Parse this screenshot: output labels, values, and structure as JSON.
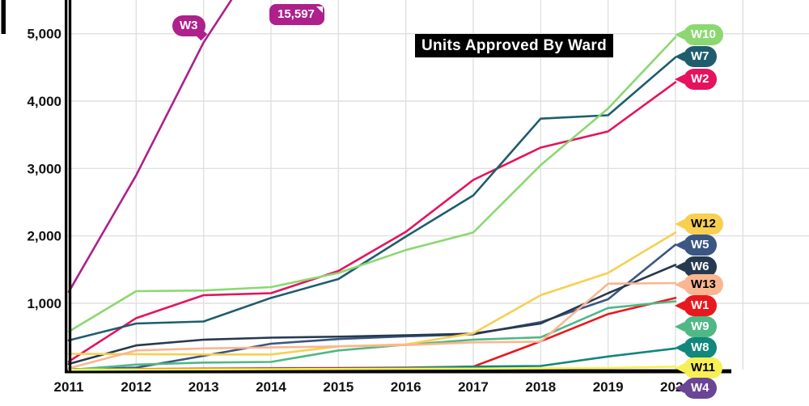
{
  "title": "Units Approved By Ward",
  "colors": {
    "background": "#ffffff",
    "grid": "#e0e0e0",
    "axis": "#000000",
    "title_bg": "#000000",
    "title_text": "#ffffff"
  },
  "chart_data": {
    "type": "line",
    "title": "Units Approved By Ward",
    "xlabel": "",
    "ylabel": "",
    "x": [
      2011,
      2012,
      2013,
      2014,
      2015,
      2016,
      2017,
      2018,
      2019,
      2020
    ],
    "x_tick_labels": [
      "2011",
      "2012",
      "2013",
      "2014",
      "2015",
      "2016",
      "2017",
      "2018",
      "2019",
      "2020"
    ],
    "y_ticks": [
      1000,
      2000,
      3000,
      4000,
      5000
    ],
    "y_tick_labels": [
      "1,000",
      "2,000",
      "3,000",
      "4,000",
      "5,000"
    ],
    "ylim": [
      0,
      5500
    ],
    "grid": true,
    "legend_position": "right-edge-labels",
    "series": [
      {
        "name": "W1",
        "color": "#e8191d",
        "label_text_color": "#ffffff",
        "values": [
          20,
          25,
          30,
          35,
          40,
          45,
          60,
          435,
          840,
          1080
        ]
      },
      {
        "name": "W2",
        "color": "#e5135e",
        "label_text_color": "#ffffff",
        "values": [
          135,
          780,
          1120,
          1150,
          1480,
          2060,
          2830,
          3310,
          3550,
          4280
        ]
      },
      {
        "name": "W3",
        "color": "#ae208b",
        "label_text_color": "#ffffff",
        "values": [
          1170,
          2900,
          4870,
          null,
          null,
          null,
          null,
          null,
          null,
          15597
        ]
      },
      {
        "name": "W4",
        "color": "#6a4596",
        "label_text_color": "#ffffff",
        "values": [
          5,
          5,
          5,
          5,
          5,
          5,
          5,
          5,
          5,
          10
        ]
      },
      {
        "name": "W5",
        "color": "#3a5683",
        "label_text_color": "#ffffff",
        "values": [
          20,
          45,
          220,
          400,
          470,
          510,
          540,
          720,
          1060,
          1870
        ]
      },
      {
        "name": "W6",
        "color": "#27394f",
        "label_text_color": "#ffffff",
        "values": [
          100,
          375,
          460,
          490,
          505,
          525,
          550,
          700,
          1150,
          1570
        ]
      },
      {
        "name": "W7",
        "color": "#1f5d6e",
        "label_text_color": "#ffffff",
        "values": [
          450,
          700,
          730,
          1080,
          1360,
          1990,
          2600,
          3740,
          3790,
          4650
        ]
      },
      {
        "name": "W8",
        "color": "#12877b",
        "label_text_color": "#ffffff",
        "values": [
          10,
          15,
          20,
          25,
          30,
          40,
          60,
          70,
          210,
          330
        ]
      },
      {
        "name": "W9",
        "color": "#4fb885",
        "label_text_color": "#ffffff",
        "values": [
          10,
          90,
          120,
          130,
          300,
          385,
          460,
          495,
          930,
          1030
        ]
      },
      {
        "name": "W10",
        "color": "#8bd871",
        "label_text_color": "#ffffff",
        "values": [
          580,
          1180,
          1190,
          1240,
          1450,
          1790,
          2050,
          3050,
          3890,
          4950
        ]
      },
      {
        "name": "W11",
        "color": "#f7f055",
        "label_text_color": "#000000",
        "values": [
          15,
          18,
          20,
          22,
          25,
          28,
          30,
          35,
          40,
          60
        ]
      },
      {
        "name": "W12",
        "color": "#f8cf4f",
        "label_text_color": "#000000",
        "values": [
          250,
          245,
          240,
          240,
          360,
          390,
          555,
          1120,
          1450,
          2050
        ]
      },
      {
        "name": "W13",
        "color": "#f9b691",
        "label_text_color": "#000000",
        "values": [
          35,
          300,
          330,
          345,
          360,
          380,
          420,
          430,
          1290,
          1300
        ]
      }
    ],
    "annotations": {
      "w3_label": "W3",
      "w3_final_value": "15,597"
    }
  }
}
